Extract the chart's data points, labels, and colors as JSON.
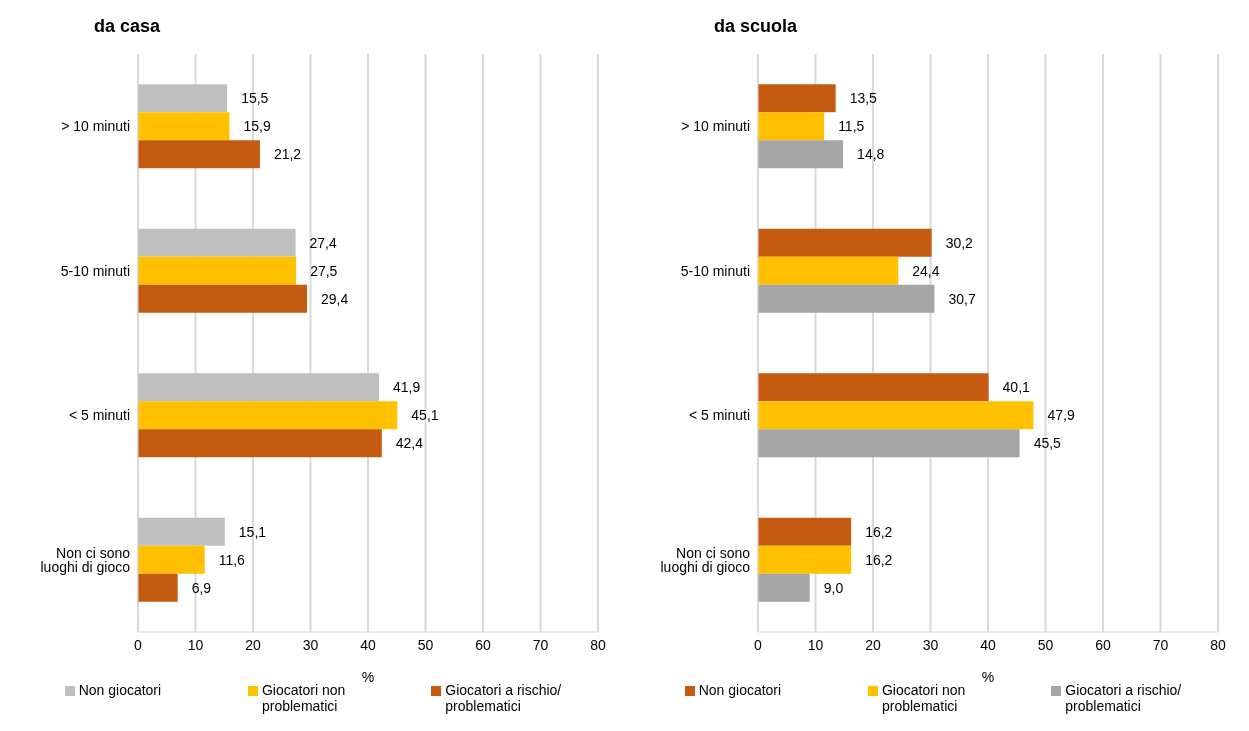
{
  "chart_data": [
    {
      "type": "bar",
      "orientation": "horizontal",
      "title": "da casa",
      "xlabel": "%",
      "categories": [
        "> 10 minuti",
        "5-10 minuti",
        "< 5 minuti",
        "Non ci sono luoghi di gioco"
      ],
      "xlim": [
        0,
        80
      ],
      "xticks": [
        0,
        10,
        20,
        30,
        40,
        50,
        60,
        70,
        80
      ],
      "grid": "x",
      "legend": "bottom",
      "series": [
        {
          "name": "Non giocatori",
          "color": "#bfbfbf",
          "values": [
            15.5,
            27.4,
            41.9,
            15.1
          ],
          "value_labels": [
            "15,5",
            "27,4",
            "41,9",
            "15,1"
          ]
        },
        {
          "name": "Giocatori non problematici",
          "color": "#ffc000",
          "values": [
            15.9,
            27.5,
            45.1,
            11.6
          ],
          "value_labels": [
            "15,9",
            "27,5",
            "45,1",
            "11,6"
          ]
        },
        {
          "name": "Giocatori a rischio/ problematici",
          "color": "#c55a11",
          "values": [
            21.2,
            29.4,
            42.4,
            6.9
          ],
          "value_labels": [
            "21,2",
            "29,4",
            "42,4",
            "6,9"
          ]
        }
      ]
    },
    {
      "type": "bar",
      "orientation": "horizontal",
      "title": "da scuola",
      "xlabel": "%",
      "categories": [
        "> 10 minuti",
        "5-10 minuti",
        "< 5 minuti",
        "Non ci sono luoghi di gioco"
      ],
      "xlim": [
        0,
        80
      ],
      "xticks": [
        0,
        10,
        20,
        30,
        40,
        50,
        60,
        70,
        80
      ],
      "grid": "x",
      "legend": "bottom",
      "series": [
        {
          "name": "Non giocatori",
          "color": "#c55a11",
          "values": [
            13.5,
            30.2,
            40.1,
            16.2
          ],
          "value_labels": [
            "13,5",
            "30,2",
            "40,1",
            "16,2"
          ]
        },
        {
          "name": "Giocatori non problematici",
          "color": "#ffc000",
          "values": [
            11.5,
            24.4,
            47.9,
            16.2
          ],
          "value_labels": [
            "11,5",
            "24,4",
            "47,9",
            "16,2"
          ]
        },
        {
          "name": "Giocatori a rischio/ problematici",
          "color": "#a5a5a5",
          "values": [
            14.8,
            30.7,
            45.5,
            9.0
          ],
          "value_labels": [
            "14,8",
            "30,7",
            "45,5",
            "9,0"
          ]
        }
      ]
    }
  ]
}
